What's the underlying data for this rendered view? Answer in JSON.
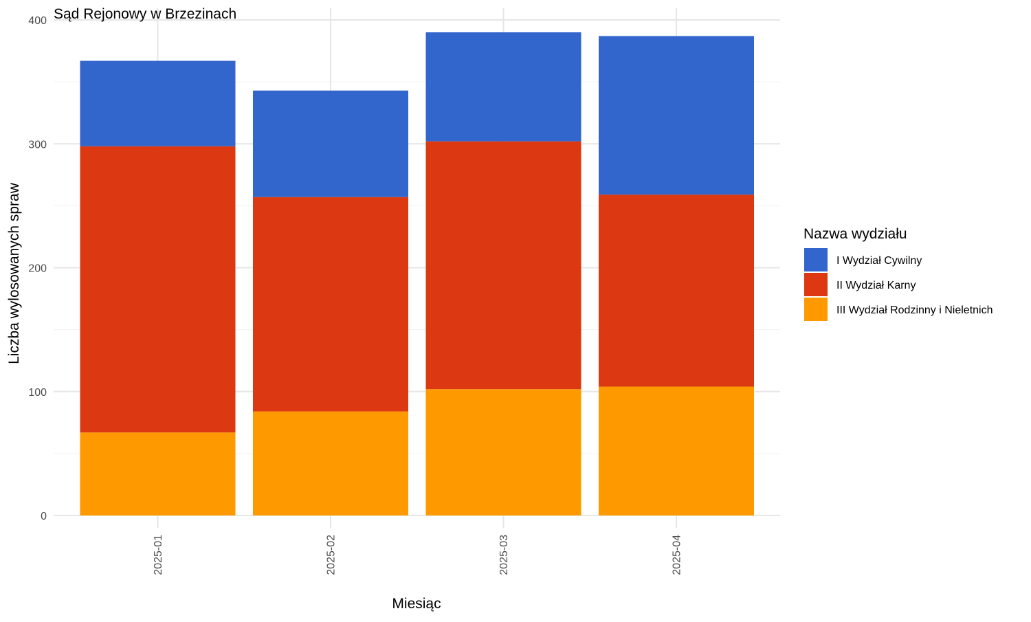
{
  "chart_data": {
    "type": "bar",
    "stacked": true,
    "title": "Sąd Rejonowy w Brzezinach",
    "xlabel": "Miesiąc",
    "ylabel": "Liczba wylosowanych spraw",
    "ylim": [
      0,
      400
    ],
    "yticks": [
      "0",
      "100",
      "200",
      "300",
      "400"
    ],
    "grid": true,
    "legend_position": "right",
    "legend_title": "Nazwa wydziału",
    "categories": [
      "2025-01",
      "2025-02",
      "2025-03",
      "2025-04"
    ],
    "series": [
      {
        "name": "I Wydział Cywilny",
        "color": "#3366CC",
        "values": [
          69,
          86,
          88,
          128
        ]
      },
      {
        "name": "II Wydział Karny",
        "color": "#DC3912",
        "values": [
          231,
          173,
          200,
          155
        ]
      },
      {
        "name": "III Wydział Rodzinny i Nieletnich",
        "color": "#FF9900",
        "values": [
          67,
          84,
          102,
          104
        ]
      }
    ]
  }
}
